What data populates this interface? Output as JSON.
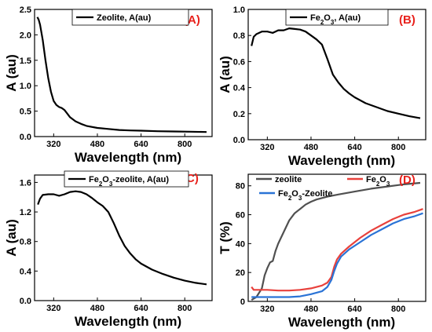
{
  "chart_data": [
    {
      "type": "line",
      "panel_label": "(A)",
      "xlabel": "Wavelength (nm)",
      "ylabel": "A (au)",
      "xlim": [
        250,
        900
      ],
      "ylim": [
        0,
        2.5
      ],
      "xticks": [
        "320",
        "480",
        "640",
        "800"
      ],
      "yticks": [
        "0.0",
        "0.5",
        "1.0",
        "1.5",
        "2.0",
        "2.5"
      ],
      "legend_position": "top-center",
      "series": [
        {
          "name": "Zeolite, A(au)",
          "color": "#000000",
          "points": [
            [
              260,
              2.35
            ],
            [
              265,
              2.3
            ],
            [
              270,
              2.2
            ],
            [
              280,
              1.9
            ],
            [
              290,
              1.5
            ],
            [
              300,
              1.15
            ],
            [
              310,
              0.88
            ],
            [
              320,
              0.7
            ],
            [
              330,
              0.62
            ],
            [
              340,
              0.58
            ],
            [
              350,
              0.56
            ],
            [
              360,
              0.52
            ],
            [
              370,
              0.45
            ],
            [
              380,
              0.38
            ],
            [
              400,
              0.3
            ],
            [
              420,
              0.25
            ],
            [
              440,
              0.21
            ],
            [
              480,
              0.17
            ],
            [
              520,
              0.15
            ],
            [
              560,
              0.13
            ],
            [
              600,
              0.12
            ],
            [
              640,
              0.115
            ],
            [
              700,
              0.105
            ],
            [
              760,
              0.1
            ],
            [
              820,
              0.095
            ],
            [
              880,
              0.09
            ]
          ]
        }
      ]
    },
    {
      "type": "line",
      "panel_label": "(B)",
      "xlabel": "Wavelength (nm)",
      "ylabel": "A (au)",
      "xlim": [
        250,
        900
      ],
      "ylim": [
        0,
        1.0
      ],
      "xticks": [
        "320",
        "480",
        "640",
        "800"
      ],
      "yticks": [
        "0.0",
        "0.2",
        "0.4",
        "0.6",
        "0.8",
        "1.0"
      ],
      "legend_position": "top-center",
      "series": [
        {
          "name": "Fe2O3, A(au)",
          "color": "#000000",
          "points": [
            [
              262,
              0.72
            ],
            [
              270,
              0.79
            ],
            [
              280,
              0.81
            ],
            [
              300,
              0.83
            ],
            [
              320,
              0.83
            ],
            [
              340,
              0.82
            ],
            [
              360,
              0.84
            ],
            [
              380,
              0.84
            ],
            [
              400,
              0.855
            ],
            [
              420,
              0.85
            ],
            [
              440,
              0.845
            ],
            [
              460,
              0.83
            ],
            [
              480,
              0.8
            ],
            [
              500,
              0.77
            ],
            [
              520,
              0.73
            ],
            [
              540,
              0.62
            ],
            [
              560,
              0.5
            ],
            [
              580,
              0.44
            ],
            [
              600,
              0.39
            ],
            [
              620,
              0.355
            ],
            [
              640,
              0.325
            ],
            [
              680,
              0.28
            ],
            [
              720,
              0.25
            ],
            [
              760,
              0.22
            ],
            [
              800,
              0.2
            ],
            [
              840,
              0.18
            ],
            [
              880,
              0.165
            ]
          ]
        }
      ]
    },
    {
      "type": "line",
      "panel_label": "(C)",
      "xlabel": "Wavelength (nm)",
      "ylabel": "A (au)",
      "xlim": [
        250,
        900
      ],
      "ylim": [
        0,
        1.7
      ],
      "xticks": [
        "320",
        "480",
        "640",
        "800"
      ],
      "yticks": [
        "0.0",
        "0.4",
        "0.8",
        "1.2",
        "1.6"
      ],
      "legend_position": "top-center",
      "series": [
        {
          "name": "Fe2O3-zeolite, A(au)",
          "color": "#000000",
          "points": [
            [
              262,
              1.3
            ],
            [
              270,
              1.38
            ],
            [
              280,
              1.43
            ],
            [
              300,
              1.44
            ],
            [
              320,
              1.44
            ],
            [
              340,
              1.42
            ],
            [
              360,
              1.44
            ],
            [
              380,
              1.47
            ],
            [
              400,
              1.48
            ],
            [
              420,
              1.47
            ],
            [
              440,
              1.44
            ],
            [
              460,
              1.39
            ],
            [
              480,
              1.33
            ],
            [
              500,
              1.28
            ],
            [
              520,
              1.2
            ],
            [
              540,
              1.05
            ],
            [
              560,
              0.88
            ],
            [
              580,
              0.74
            ],
            [
              600,
              0.64
            ],
            [
              620,
              0.56
            ],
            [
              640,
              0.5
            ],
            [
              680,
              0.42
            ],
            [
              720,
              0.36
            ],
            [
              760,
              0.31
            ],
            [
              800,
              0.27
            ],
            [
              840,
              0.24
            ],
            [
              880,
              0.22
            ]
          ]
        }
      ]
    },
    {
      "type": "line",
      "panel_label": "(D)",
      "xlabel": "Wavelength (nm)",
      "ylabel": "T (%)",
      "xlim": [
        250,
        900
      ],
      "ylim": [
        0,
        88
      ],
      "xticks": [
        "320",
        "480",
        "640",
        "800"
      ],
      "yticks": [
        "0",
        "20",
        "40",
        "60",
        "80"
      ],
      "legend_position": "top-left",
      "series": [
        {
          "name": "zeolite",
          "color": "#505050",
          "points": [
            [
              262,
              1
            ],
            [
              280,
              3
            ],
            [
              300,
              9
            ],
            [
              310,
              18
            ],
            [
              320,
              23
            ],
            [
              330,
              27
            ],
            [
              340,
              28
            ],
            [
              350,
              35
            ],
            [
              360,
              40
            ],
            [
              380,
              48
            ],
            [
              400,
              56
            ],
            [
              420,
              61
            ],
            [
              440,
              64
            ],
            [
              460,
              67
            ],
            [
              480,
              69
            ],
            [
              500,
              70.5
            ],
            [
              540,
              72.5
            ],
            [
              580,
              74
            ],
            [
              640,
              76
            ],
            [
              700,
              78
            ],
            [
              760,
              79.5
            ],
            [
              820,
              81
            ],
            [
              880,
              82
            ]
          ]
        },
        {
          "name": "Fe2O3",
          "color": "#e8413c",
          "points": [
            [
              262,
              10
            ],
            [
              270,
              8
            ],
            [
              290,
              8
            ],
            [
              320,
              8
            ],
            [
              360,
              7.5
            ],
            [
              400,
              7.5
            ],
            [
              440,
              8
            ],
            [
              480,
              9
            ],
            [
              520,
              11
            ],
            [
              540,
              13
            ],
            [
              555,
              17
            ],
            [
              565,
              24
            ],
            [
              575,
              29
            ],
            [
              590,
              33
            ],
            [
              620,
              38
            ],
            [
              660,
              44
            ],
            [
              700,
              49
            ],
            [
              740,
              53
            ],
            [
              780,
              57
            ],
            [
              820,
              60
            ],
            [
              860,
              62
            ],
            [
              890,
              64
            ]
          ]
        },
        {
          "name": "Fe2O3-Zeolite",
          "color": "#2a73d6",
          "points": [
            [
              262,
              3
            ],
            [
              280,
              3
            ],
            [
              320,
              3
            ],
            [
              360,
              3
            ],
            [
              400,
              3
            ],
            [
              440,
              3.5
            ],
            [
              480,
              5
            ],
            [
              520,
              7
            ],
            [
              540,
              10
            ],
            [
              555,
              15
            ],
            [
              565,
              21
            ],
            [
              575,
              26
            ],
            [
              590,
              31
            ],
            [
              620,
              36
            ],
            [
              660,
              41
            ],
            [
              700,
              46
            ],
            [
              740,
              50
            ],
            [
              780,
              54
            ],
            [
              820,
              57
            ],
            [
              860,
              59
            ],
            [
              890,
              61
            ]
          ]
        }
      ]
    }
  ]
}
